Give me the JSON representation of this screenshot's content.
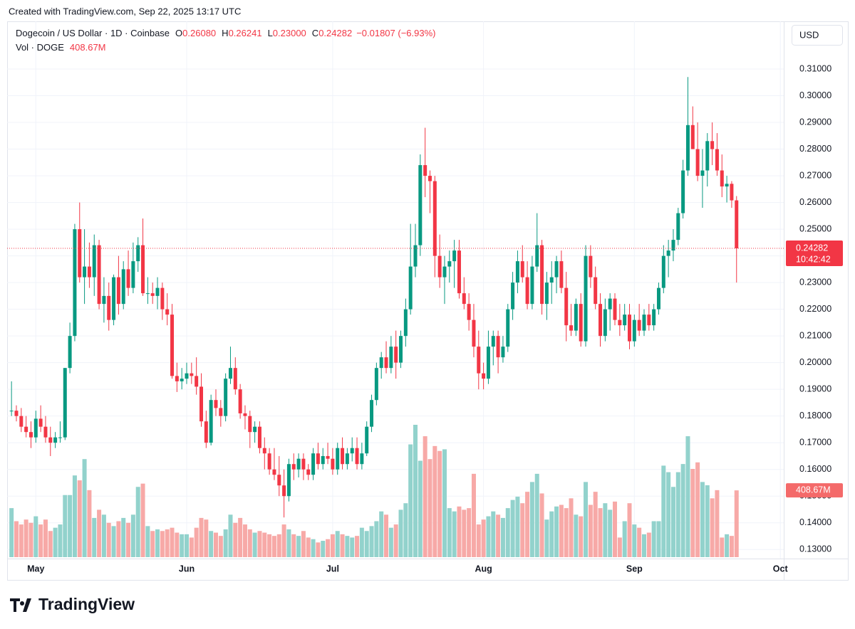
{
  "header": {
    "created": "Created with TradingView.com, Sep 22, 2025 13:17 UTC",
    "brand": "TradingView"
  },
  "chart_data": {
    "type": "candlestick",
    "title": "Dogecoin / US Dollar · 1D · Coinbase",
    "legend": {
      "o_key": "O",
      "open": "0.26080",
      "h_key": "H",
      "high": "0.26241",
      "l_key": "L",
      "low": "0.23000",
      "c_key": "C",
      "close": "0.24282",
      "change": "−0.01807 (−6.93%)",
      "volume_title": "Vol · DOGE",
      "volume": "408.67M"
    },
    "currency": "USD",
    "countdown": "10:42:42",
    "last_volume_label": "408.67M",
    "up_color": "#089981",
    "down_color": "#f23645",
    "volume_up_color": "#92d2cc",
    "volume_down_color": "#f7a9a7",
    "grid": true,
    "xlim": [
      -0.9,
      158.7
    ],
    "xticks": [
      {
        "value": 5,
        "label": "May"
      },
      {
        "value": 36,
        "label": "Jun"
      },
      {
        "value": 66,
        "label": "Jul"
      },
      {
        "value": 97,
        "label": "Aug"
      },
      {
        "value": 128,
        "label": "Sep"
      },
      {
        "value": 158,
        "label": "Oct"
      }
    ],
    "ylim": [
      0.1266,
      0.3252
    ],
    "yticks": [
      {
        "value": 0.13,
        "label": "0.13000"
      },
      {
        "value": 0.14,
        "label": "0.14000"
      },
      {
        "value": 0.15,
        "label": "0.15000"
      },
      {
        "value": 0.16,
        "label": "0.16000"
      },
      {
        "value": 0.17,
        "label": "0.17000"
      },
      {
        "value": 0.18,
        "label": "0.18000"
      },
      {
        "value": 0.19,
        "label": "0.19000"
      },
      {
        "value": 0.2,
        "label": "0.20000"
      },
      {
        "value": 0.21,
        "label": "0.21000"
      },
      {
        "value": 0.22,
        "label": "0.22000"
      },
      {
        "value": 0.23,
        "label": "0.23000"
      },
      {
        "value": 0.24,
        "label": "0.24000"
      },
      {
        "value": 0.25,
        "label": "0.25000"
      },
      {
        "value": 0.26,
        "label": "0.26000"
      },
      {
        "value": 0.27,
        "label": "0.27000"
      },
      {
        "value": 0.28,
        "label": "0.28000"
      },
      {
        "value": 0.29,
        "label": "0.29000"
      },
      {
        "value": 0.3,
        "label": "0.30000"
      },
      {
        "value": 0.31,
        "label": "0.31000"
      }
    ],
    "ohlc": [
      [
        0.182,
        0.193,
        0.18,
        0.182
      ],
      [
        0.182,
        0.184,
        0.178,
        0.18
      ],
      [
        0.18,
        0.183,
        0.174,
        0.176
      ],
      [
        0.176,
        0.18,
        0.172,
        0.174
      ],
      [
        0.174,
        0.178,
        0.168,
        0.172
      ],
      [
        0.172,
        0.182,
        0.17,
        0.179
      ],
      [
        0.179,
        0.184,
        0.174,
        0.176
      ],
      [
        0.176,
        0.18,
        0.17,
        0.172
      ],
      [
        0.172,
        0.176,
        0.165,
        0.17
      ],
      [
        0.17,
        0.174,
        0.168,
        0.172
      ],
      [
        0.172,
        0.178,
        0.17,
        0.172
      ],
      [
        0.172,
        0.198,
        0.171,
        0.198
      ],
      [
        0.198,
        0.215,
        0.196,
        0.21
      ],
      [
        0.21,
        0.252,
        0.208,
        0.25
      ],
      [
        0.25,
        0.26,
        0.23,
        0.232
      ],
      [
        0.232,
        0.25,
        0.222,
        0.236
      ],
      [
        0.236,
        0.245,
        0.228,
        0.232
      ],
      [
        0.232,
        0.248,
        0.225,
        0.244
      ],
      [
        0.244,
        0.246,
        0.22,
        0.222
      ],
      [
        0.222,
        0.232,
        0.215,
        0.225
      ],
      [
        0.225,
        0.23,
        0.212,
        0.216
      ],
      [
        0.216,
        0.233,
        0.214,
        0.232
      ],
      [
        0.232,
        0.24,
        0.218,
        0.222
      ],
      [
        0.222,
        0.238,
        0.22,
        0.235
      ],
      [
        0.235,
        0.242,
        0.225,
        0.228
      ],
      [
        0.228,
        0.245,
        0.226,
        0.238
      ],
      [
        0.238,
        0.247,
        0.234,
        0.244
      ],
      [
        0.244,
        0.254,
        0.225,
        0.226
      ],
      [
        0.226,
        0.232,
        0.222,
        0.226
      ],
      [
        0.226,
        0.23,
        0.222,
        0.225
      ],
      [
        0.225,
        0.232,
        0.22,
        0.228
      ],
      [
        0.228,
        0.23,
        0.216,
        0.22
      ],
      [
        0.22,
        0.226,
        0.214,
        0.218
      ],
      [
        0.218,
        0.222,
        0.194,
        0.195
      ],
      [
        0.195,
        0.2,
        0.189,
        0.193
      ],
      [
        0.193,
        0.198,
        0.19,
        0.194
      ],
      [
        0.194,
        0.2,
        0.192,
        0.196
      ],
      [
        0.196,
        0.2,
        0.192,
        0.195
      ],
      [
        0.195,
        0.202,
        0.188,
        0.191
      ],
      [
        0.191,
        0.196,
        0.176,
        0.178
      ],
      [
        0.178,
        0.182,
        0.168,
        0.17
      ],
      [
        0.17,
        0.188,
        0.169,
        0.186
      ],
      [
        0.186,
        0.19,
        0.18,
        0.183
      ],
      [
        0.183,
        0.186,
        0.176,
        0.18
      ],
      [
        0.18,
        0.196,
        0.178,
        0.194
      ],
      [
        0.194,
        0.206,
        0.192,
        0.198
      ],
      [
        0.198,
        0.202,
        0.188,
        0.19
      ],
      [
        0.19,
        0.192,
        0.179,
        0.181
      ],
      [
        0.181,
        0.184,
        0.175,
        0.18
      ],
      [
        0.18,
        0.182,
        0.168,
        0.174
      ],
      [
        0.174,
        0.178,
        0.17,
        0.176
      ],
      [
        0.176,
        0.178,
        0.166,
        0.168
      ],
      [
        0.168,
        0.172,
        0.16,
        0.166
      ],
      [
        0.166,
        0.168,
        0.158,
        0.16
      ],
      [
        0.16,
        0.168,
        0.156,
        0.158
      ],
      [
        0.158,
        0.165,
        0.15,
        0.154
      ],
      [
        0.154,
        0.16,
        0.142,
        0.15
      ],
      [
        0.15,
        0.164,
        0.148,
        0.162
      ],
      [
        0.162,
        0.166,
        0.156,
        0.16
      ],
      [
        0.16,
        0.166,
        0.157,
        0.164
      ],
      [
        0.164,
        0.166,
        0.156,
        0.16
      ],
      [
        0.16,
        0.162,
        0.156,
        0.158
      ],
      [
        0.158,
        0.168,
        0.156,
        0.166
      ],
      [
        0.166,
        0.17,
        0.16,
        0.162
      ],
      [
        0.162,
        0.168,
        0.16,
        0.165
      ],
      [
        0.165,
        0.17,
        0.162,
        0.164
      ],
      [
        0.164,
        0.168,
        0.158,
        0.16
      ],
      [
        0.16,
        0.17,
        0.158,
        0.168
      ],
      [
        0.168,
        0.172,
        0.16,
        0.162
      ],
      [
        0.162,
        0.168,
        0.16,
        0.166
      ],
      [
        0.166,
        0.172,
        0.163,
        0.168
      ],
      [
        0.168,
        0.172,
        0.16,
        0.162
      ],
      [
        0.162,
        0.17,
        0.16,
        0.166
      ],
      [
        0.166,
        0.178,
        0.165,
        0.176
      ],
      [
        0.176,
        0.188,
        0.174,
        0.186
      ],
      [
        0.186,
        0.2,
        0.184,
        0.198
      ],
      [
        0.198,
        0.204,
        0.194,
        0.202
      ],
      [
        0.202,
        0.208,
        0.196,
        0.198
      ],
      [
        0.198,
        0.21,
        0.196,
        0.206
      ],
      [
        0.206,
        0.212,
        0.194,
        0.2
      ],
      [
        0.2,
        0.212,
        0.198,
        0.21
      ],
      [
        0.21,
        0.224,
        0.206,
        0.22
      ],
      [
        0.22,
        0.252,
        0.218,
        0.236
      ],
      [
        0.236,
        0.252,
        0.232,
        0.244
      ],
      [
        0.244,
        0.278,
        0.24,
        0.274
      ],
      [
        0.274,
        0.288,
        0.262,
        0.27
      ],
      [
        0.27,
        0.272,
        0.256,
        0.268
      ],
      [
        0.268,
        0.27,
        0.232,
        0.24
      ],
      [
        0.24,
        0.248,
        0.228,
        0.232
      ],
      [
        0.232,
        0.24,
        0.222,
        0.236
      ],
      [
        0.236,
        0.242,
        0.23,
        0.238
      ],
      [
        0.238,
        0.246,
        0.228,
        0.242
      ],
      [
        0.242,
        0.246,
        0.224,
        0.226
      ],
      [
        0.226,
        0.232,
        0.22,
        0.222
      ],
      [
        0.222,
        0.226,
        0.212,
        0.216
      ],
      [
        0.216,
        0.222,
        0.202,
        0.206
      ],
      [
        0.206,
        0.212,
        0.19,
        0.196
      ],
      [
        0.196,
        0.2,
        0.19,
        0.194
      ],
      [
        0.194,
        0.212,
        0.192,
        0.206
      ],
      [
        0.206,
        0.212,
        0.199,
        0.21
      ],
      [
        0.21,
        0.212,
        0.196,
        0.202
      ],
      [
        0.202,
        0.21,
        0.2,
        0.206
      ],
      [
        0.206,
        0.222,
        0.204,
        0.22
      ],
      [
        0.22,
        0.234,
        0.216,
        0.23
      ],
      [
        0.23,
        0.242,
        0.226,
        0.238
      ],
      [
        0.238,
        0.244,
        0.23,
        0.232
      ],
      [
        0.232,
        0.238,
        0.22,
        0.222
      ],
      [
        0.222,
        0.24,
        0.22,
        0.236
      ],
      [
        0.236,
        0.256,
        0.234,
        0.244
      ],
      [
        0.244,
        0.246,
        0.218,
        0.222
      ],
      [
        0.222,
        0.234,
        0.216,
        0.23
      ],
      [
        0.23,
        0.238,
        0.222,
        0.232
      ],
      [
        0.232,
        0.24,
        0.226,
        0.238
      ],
      [
        0.238,
        0.242,
        0.226,
        0.228
      ],
      [
        0.228,
        0.234,
        0.208,
        0.214
      ],
      [
        0.214,
        0.222,
        0.21,
        0.212
      ],
      [
        0.212,
        0.224,
        0.21,
        0.222
      ],
      [
        0.222,
        0.226,
        0.206,
        0.208
      ],
      [
        0.208,
        0.244,
        0.206,
        0.24
      ],
      [
        0.24,
        0.244,
        0.228,
        0.232
      ],
      [
        0.232,
        0.236,
        0.22,
        0.222
      ],
      [
        0.222,
        0.226,
        0.206,
        0.21
      ],
      [
        0.21,
        0.224,
        0.208,
        0.22
      ],
      [
        0.22,
        0.226,
        0.212,
        0.224
      ],
      [
        0.224,
        0.226,
        0.214,
        0.216
      ],
      [
        0.216,
        0.222,
        0.21,
        0.214
      ],
      [
        0.214,
        0.222,
        0.212,
        0.218
      ],
      [
        0.218,
        0.222,
        0.205,
        0.208
      ],
      [
        0.208,
        0.218,
        0.206,
        0.216
      ],
      [
        0.216,
        0.222,
        0.21,
        0.212
      ],
      [
        0.212,
        0.22,
        0.21,
        0.218
      ],
      [
        0.218,
        0.222,
        0.212,
        0.214
      ],
      [
        0.214,
        0.222,
        0.212,
        0.22
      ],
      [
        0.22,
        0.23,
        0.218,
        0.228
      ],
      [
        0.228,
        0.244,
        0.226,
        0.24
      ],
      [
        0.24,
        0.246,
        0.232,
        0.242
      ],
      [
        0.242,
        0.25,
        0.238,
        0.246
      ],
      [
        0.246,
        0.258,
        0.244,
        0.256
      ],
      [
        0.256,
        0.276,
        0.254,
        0.272
      ],
      [
        0.272,
        0.307,
        0.27,
        0.289
      ],
      [
        0.289,
        0.296,
        0.28,
        0.28
      ],
      [
        0.28,
        0.29,
        0.268,
        0.27
      ],
      [
        0.27,
        0.28,
        0.258,
        0.272
      ],
      [
        0.272,
        0.286,
        0.266,
        0.283
      ],
      [
        0.283,
        0.29,
        0.274,
        0.28
      ],
      [
        0.28,
        0.286,
        0.27,
        0.272
      ],
      [
        0.272,
        0.278,
        0.262,
        0.266
      ],
      [
        0.266,
        0.27,
        0.26,
        0.267
      ],
      [
        0.267,
        0.268,
        0.258,
        0.2608
      ],
      [
        0.2608,
        0.26241,
        0.23,
        0.24282
      ]
    ],
    "volume": [
      300,
      220,
      200,
      230,
      210,
      250,
      200,
      230,
      160,
      180,
      200,
      380,
      380,
      500,
      470,
      600,
      410,
      240,
      290,
      260,
      210,
      190,
      220,
      240,
      210,
      260,
      430,
      450,
      190,
      160,
      170,
      160,
      170,
      180,
      150,
      140,
      140,
      120,
      180,
      240,
      230,
      160,
      150,
      130,
      170,
      260,
      210,
      240,
      200,
      170,
      150,
      160,
      150,
      140,
      130,
      140,
      200,
      170,
      140,
      130,
      160,
      120,
      110,
      90,
      100,
      110,
      140,
      160,
      140,
      130,
      120,
      130,
      180,
      160,
      190,
      220,
      280,
      260,
      180,
      200,
      290,
      330,
      690,
      810,
      590,
      740,
      600,
      680,
      650,
      660,
      300,
      280,
      310,
      290,
      300,
      510,
      200,
      230,
      250,
      280,
      260,
      240,
      300,
      350,
      370,
      330,
      400,
      460,
      510,
      390,
      230,
      280,
      310,
      320,
      300,
      360,
      260,
      250,
      460,
      320,
      400,
      300,
      330,
      290,
      340,
      120,
      220,
      330,
      200,
      180,
      140,
      150,
      220,
      220,
      560,
      520,
      430,
      520,
      570,
      740,
      540,
      580,
      460,
      440,
      360,
      410,
      120,
      140,
      130,
      408.67
    ]
  }
}
